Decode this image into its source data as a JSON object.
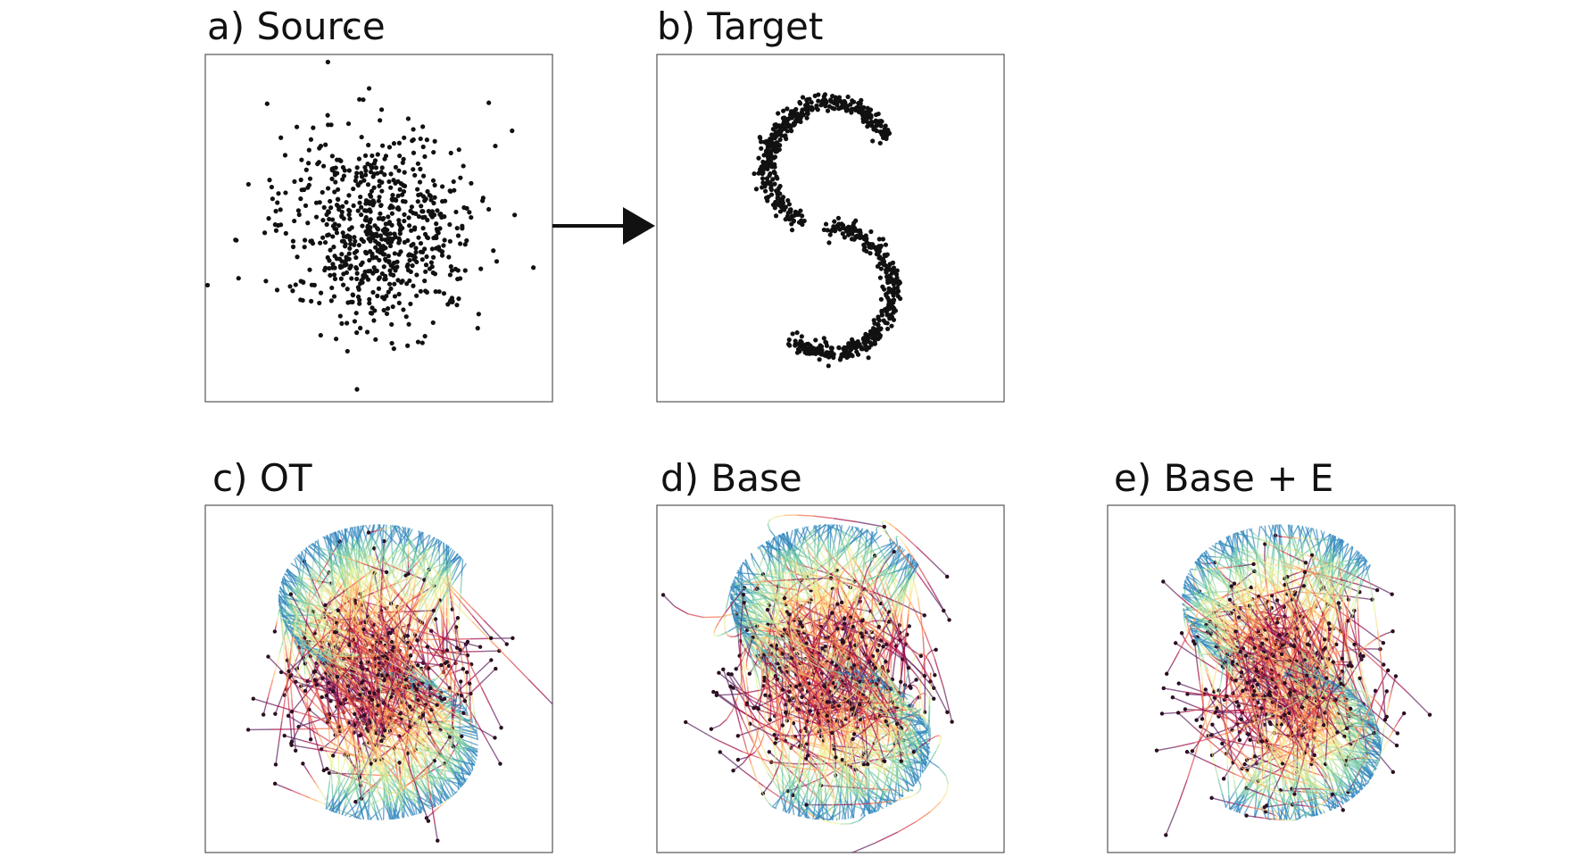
{
  "panels": [
    {
      "label": "a) Source"
    },
    {
      "label": "b) Target"
    },
    {
      "label": "c) OT"
    },
    {
      "label": "d) Base"
    },
    {
      "label": "e) Base + E"
    }
  ]
}
